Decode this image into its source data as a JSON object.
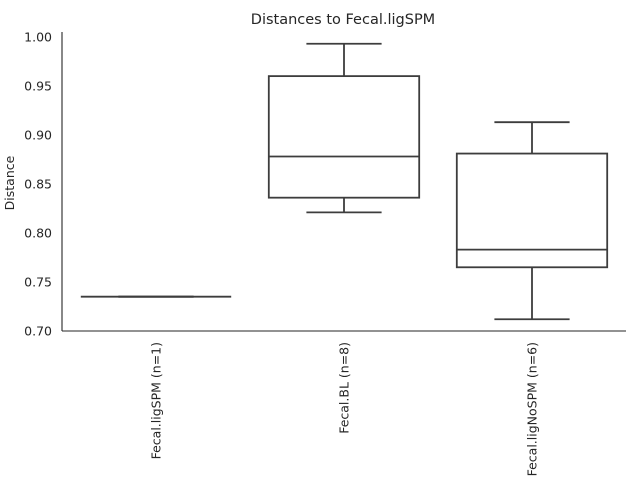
{
  "chart_data": {
    "type": "box",
    "title": "Distances to Fecal.ligSPM",
    "xlabel": "",
    "ylabel": "Distance",
    "ylim": [
      0.7,
      1.005
    ],
    "yticks": [
      "0.70",
      "0.75",
      "0.80",
      "0.85",
      "0.90",
      "0.95",
      "1.00"
    ],
    "ytick_values": [
      0.7,
      0.75,
      0.8,
      0.85,
      0.9,
      0.95,
      1.0
    ],
    "grid": false,
    "categories": [
      "Fecal.ligSPM (n=1)",
      "Fecal.BL (n=8)",
      "Fecal.ligNoSPM (n=6)"
    ],
    "boxes": [
      {
        "min": 0.735,
        "q1": 0.735,
        "median": 0.735,
        "q3": 0.735,
        "max": 0.735
      },
      {
        "min": 0.821,
        "q1": 0.836,
        "median": 0.878,
        "q3": 0.96,
        "max": 0.993
      },
      {
        "min": 0.712,
        "q1": 0.765,
        "median": 0.783,
        "q3": 0.881,
        "max": 0.913
      }
    ],
    "colors": {
      "box_edge": "#3d3d3d",
      "box_fill": "#ffffff",
      "text": "#262626"
    }
  }
}
